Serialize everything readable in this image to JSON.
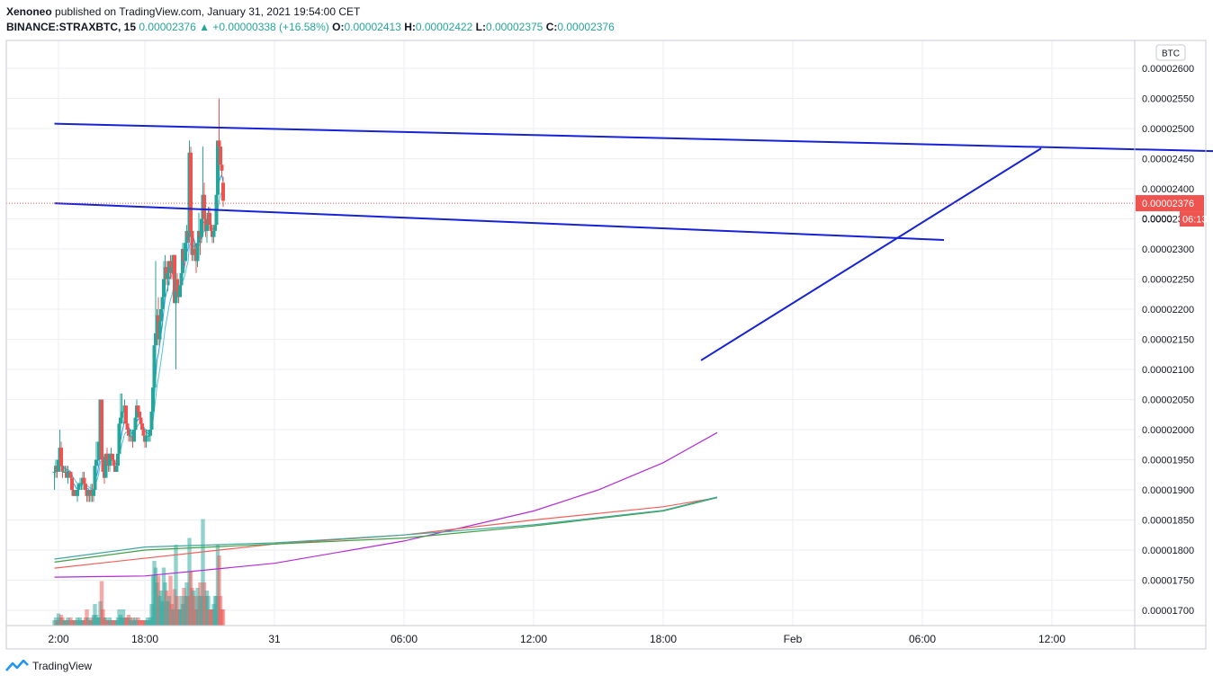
{
  "header": {
    "publisher": "Xenoneo",
    "published_text": "published on TradingView.com, January 31, 2021 19:54:00 CET",
    "symbol": "BINANCE:STRAXBTC, 15",
    "price": "0.00002376",
    "change": "▲ +0.00000338 (+16.58%)",
    "o_label": "O:",
    "o_value": "0.00002413",
    "h_label": "H:",
    "h_value": "0.00002422",
    "l_label": "L:",
    "l_value": "0.00002375",
    "c_label": "C:",
    "c_value": "0.00002376"
  },
  "price_axis": {
    "currency": "BTC",
    "last_price_label": "0.00002376",
    "countdown_label": "06:13",
    "countdown_prefix": "0.0000"
  },
  "footer": {
    "brand": "TradingView"
  },
  "colors": {
    "up": "#26a69a",
    "down": "#ef5350",
    "trendline": "#1522d6",
    "ema_fast": "#2196f3",
    "ema_slow": "#4dc4dc",
    "ma_purple": "#b32bd6",
    "ma_red": "#f0605a",
    "ma_green": "#43a047",
    "ma_teal": "#3fa89e",
    "grid": "#eceef2"
  },
  "chart_data": {
    "type": "candlestick",
    "ylim": [
      1.68e-05,
      2.63e-05
    ],
    "y_ticks": [
      "0.00002600",
      "0.00002550",
      "0.00002500",
      "0.00002450",
      "0.00002400",
      "0.00002350",
      "0.00002300",
      "0.00002250",
      "0.00002200",
      "0.00002150",
      "0.00002100",
      "0.00002050",
      "0.00002000",
      "0.00001950",
      "0.00001900",
      "0.00001850",
      "0.00001800",
      "0.00001750",
      "0.00001700"
    ],
    "x_ticks": [
      "2:00",
      "18:00",
      "31",
      "06:00",
      "12:00",
      "18:00",
      "Feb",
      "06:00",
      "12:00"
    ],
    "x_tick_times": [
      -16,
      0,
      24,
      48,
      72,
      96,
      120,
      144,
      168
    ],
    "start_time": -16.75,
    "bar_hours": 0.25,
    "candles": [
      [
        1.93e-05,
        1.94e-05,
        1.9e-05,
        1.93e-05,
        0.004
      ],
      [
        1.93e-05,
        1.95e-05,
        1.92e-05,
        1.94e-05,
        0.006
      ],
      [
        1.94e-05,
        1.95e-05,
        1.92e-05,
        1.93e-05,
        0.004
      ],
      [
        1.93e-05,
        1.95e-05,
        1.93e-05,
        1.95e-05,
        0.009
      ],
      [
        1.95e-05,
        2e-05,
        1.94e-05,
        1.97e-05,
        0.006
      ],
      [
        1.97e-05,
        1.98e-05,
        1.93e-05,
        1.94e-05,
        0.008
      ],
      [
        1.94e-05,
        1.96e-05,
        1.92e-05,
        1.93e-05,
        0.006
      ],
      [
        1.93e-05,
        1.94e-05,
        1.93e-05,
        1.93e-05,
        0.004
      ],
      [
        1.93e-05,
        1.94e-05,
        1.92e-05,
        1.93e-05,
        0.004
      ],
      [
        1.93e-05,
        1.94e-05,
        1.92e-05,
        1.92e-05,
        0.004
      ],
      [
        1.92e-05,
        1.94e-05,
        1.91e-05,
        1.93e-05,
        0.006
      ],
      [
        1.93e-05,
        1.93e-05,
        1.92e-05,
        1.93e-05,
        0.004
      ],
      [
        1.93e-05,
        1.93e-05,
        1.91e-05,
        1.92e-05,
        0.006
      ],
      [
        1.92e-05,
        1.92e-05,
        1.89e-05,
        1.9e-05,
        0.004
      ],
      [
        1.9e-05,
        1.91e-05,
        1.89e-05,
        1.89e-05,
        0.004
      ],
      [
        1.89e-05,
        1.9e-05,
        1.89e-05,
        1.9e-05,
        0.004
      ],
      [
        1.9e-05,
        1.9e-05,
        1.89e-05,
        1.89e-05,
        0.004
      ],
      [
        1.89e-05,
        1.9e-05,
        1.88e-05,
        1.9e-05,
        0.006
      ],
      [
        1.9e-05,
        1.91e-05,
        1.89e-05,
        1.91e-05,
        0.004
      ],
      [
        1.91e-05,
        1.92e-05,
        1.9e-05,
        1.91e-05,
        0.006
      ],
      [
        1.91e-05,
        1.92e-05,
        1.9e-05,
        1.91e-05,
        0.004
      ],
      [
        1.91e-05,
        1.93e-05,
        1.9e-05,
        1.92e-05,
        0.004
      ],
      [
        1.92e-05,
        1.93e-05,
        1.9e-05,
        1.91e-05,
        0.004
      ],
      [
        1.91e-05,
        1.92e-05,
        1.89e-05,
        1.9e-05,
        0.006
      ],
      [
        1.9e-05,
        1.91e-05,
        1.88e-05,
        1.89e-05,
        0.012
      ],
      [
        1.89e-05,
        1.9e-05,
        1.88e-05,
        1.9e-05,
        0.006
      ],
      [
        1.9e-05,
        1.9e-05,
        1.88e-05,
        1.89e-05,
        0.004
      ],
      [
        1.89e-05,
        1.91e-05,
        1.88e-05,
        1.9e-05,
        0.004
      ],
      [
        1.9e-05,
        1.91e-05,
        1.88e-05,
        1.89e-05,
        0.006
      ],
      [
        1.89e-05,
        1.9e-05,
        1.88e-05,
        1.9e-05,
        0.008
      ],
      [
        1.9e-05,
        1.95e-05,
        1.89e-05,
        1.94e-05,
        0.016
      ],
      [
        1.94e-05,
        1.98e-05,
        1.93e-05,
        1.95e-05,
        0.008
      ],
      [
        1.95e-05,
        1.95e-05,
        1.94e-05,
        1.95e-05,
        0.006
      ],
      [
        1.95e-05,
        1.99e-05,
        1.95e-05,
        1.98e-05,
        0.006
      ],
      [
        1.98e-05,
        2.05e-05,
        1.97e-05,
        2.05e-05,
        0.018
      ],
      [
        2.05e-05,
        2.05e-05,
        1.94e-05,
        1.95e-05,
        0.033
      ],
      [
        1.95e-05,
        1.96e-05,
        1.92e-05,
        1.93e-05,
        0.012
      ],
      [
        1.93e-05,
        1.94e-05,
        1.91e-05,
        1.92e-05,
        0.006
      ],
      [
        1.92e-05,
        1.96e-05,
        1.92e-05,
        1.96e-05,
        0.006
      ],
      [
        1.96e-05,
        1.97e-05,
        1.95e-05,
        1.95e-05,
        0.004
      ],
      [
        1.95e-05,
        1.96e-05,
        1.93e-05,
        1.94e-05,
        0.004
      ],
      [
        1.94e-05,
        1.96e-05,
        1.93e-05,
        1.96e-05,
        0.006
      ],
      [
        1.96e-05,
        1.97e-05,
        1.95e-05,
        1.96e-05,
        0.004
      ],
      [
        1.96e-05,
        1.96e-05,
        1.94e-05,
        1.95e-05,
        0.004
      ],
      [
        1.95e-05,
        1.95e-05,
        1.93e-05,
        1.94e-05,
        0.004
      ],
      [
        1.94e-05,
        1.95e-05,
        1.93e-05,
        1.93e-05,
        0.004
      ],
      [
        1.93e-05,
        1.95e-05,
        1.93e-05,
        1.94e-05,
        0.004
      ],
      [
        1.94e-05,
        1.96e-05,
        1.94e-05,
        1.96e-05,
        0.006
      ],
      [
        1.96e-05,
        2.02e-05,
        1.95e-05,
        2.01e-05,
        0.012
      ],
      [
        2.01e-05,
        2.06e-05,
        2e-05,
        2.02e-05,
        0.008
      ],
      [
        2.02e-05,
        2.06e-05,
        2.01e-05,
        2.03e-05,
        0.006
      ],
      [
        2.03e-05,
        2.04e-05,
        2.01e-05,
        2.03e-05,
        0.012
      ],
      [
        2.03e-05,
        2.05e-05,
        2.02e-05,
        2.04e-05,
        0.006
      ],
      [
        2.04e-05,
        2.04e-05,
        2e-05,
        2.01e-05,
        0.006
      ],
      [
        2.01e-05,
        2.02e-05,
        1.99e-05,
        2e-05,
        0.006
      ],
      [
        2e-05,
        2.01e-05,
        1.98e-05,
        1.99e-05,
        0.008
      ],
      [
        1.99e-05,
        2e-05,
        1.98e-05,
        1.99e-05,
        0.006
      ],
      [
        1.99e-05,
        2e-05,
        1.98e-05,
        1.99e-05,
        0.004
      ],
      [
        1.99e-05,
        2e-05,
        1.97e-05,
        1.98e-05,
        0.006
      ],
      [
        1.98e-05,
        2.01e-05,
        1.98e-05,
        2e-05,
        0.004
      ],
      [
        2e-05,
        2.02e-05,
        1.99e-05,
        2.02e-05,
        0.006
      ],
      [
        2.02e-05,
        2.05e-05,
        2.01e-05,
        2.04e-05,
        0.004
      ],
      [
        2.04e-05,
        2.04e-05,
        2.02e-05,
        2.03e-05,
        0.006
      ],
      [
        2.03e-05,
        2.03e-05,
        2.01e-05,
        2.02e-05,
        0.004
      ],
      [
        2.02e-05,
        2.03e-05,
        2e-05,
        2.01e-05,
        0.004
      ],
      [
        2.01e-05,
        2.02e-05,
        1.99e-05,
        2e-05,
        0.004
      ],
      [
        2e-05,
        2.01e-05,
        1.98e-05,
        1.99e-05,
        0.004
      ],
      [
        1.99e-05,
        2e-05,
        1.97e-05,
        1.98e-05,
        0.004
      ],
      [
        1.98e-05,
        2e-05,
        1.97e-05,
        1.99e-05,
        0.004
      ],
      [
        1.99e-05,
        2e-05,
        1.98e-05,
        1.99e-05,
        0.006
      ],
      [
        1.99e-05,
        2e-05,
        1.98e-05,
        1.99e-05,
        0.004
      ],
      [
        1.99e-05,
        2e-05,
        1.98e-05,
        2e-05,
        0.006
      ],
      [
        2e-05,
        2.04e-05,
        1.99e-05,
        2.03e-05,
        0.016
      ],
      [
        2.03e-05,
        2.08e-05,
        2.02e-05,
        2.07e-05,
        0.037
      ],
      [
        2.07e-05,
        2.16e-05,
        2.06e-05,
        2.14e-05,
        0.048
      ],
      [
        2.14e-05,
        2.28e-05,
        2.13e-05,
        2.16e-05,
        0.043
      ],
      [
        2.16e-05,
        2.2e-05,
        2.14e-05,
        2.19e-05,
        0.032
      ],
      [
        2.19e-05,
        2.22e-05,
        2.14e-05,
        2.15e-05,
        0.037
      ],
      [
        2.15e-05,
        2.19e-05,
        2.14e-05,
        2.18e-05,
        0.022
      ],
      [
        2.18e-05,
        2.22e-05,
        2.17e-05,
        2.2e-05,
        0.026
      ],
      [
        2.2e-05,
        2.23e-05,
        2.18e-05,
        2.22e-05,
        0.018
      ],
      [
        2.22e-05,
        2.28e-05,
        2.2e-05,
        2.25e-05,
        0.043
      ],
      [
        2.25e-05,
        2.29e-05,
        2.24e-05,
        2.27e-05,
        0.032
      ],
      [
        2.27e-05,
        2.28e-05,
        2.24e-05,
        2.25e-05,
        0.026
      ],
      [
        2.25e-05,
        2.27e-05,
        2.23e-05,
        2.26e-05,
        0.018
      ],
      [
        2.26e-05,
        2.28e-05,
        2.24e-05,
        2.28e-05,
        0.022
      ],
      [
        2.28e-05,
        2.29e-05,
        2.25e-05,
        2.27e-05,
        0.037
      ],
      [
        2.27e-05,
        2.28e-05,
        2.25e-05,
        2.26e-05,
        0.016
      ],
      [
        2.26e-05,
        2.29e-05,
        2.26e-05,
        2.29e-05,
        0.012
      ],
      [
        2.29e-05,
        2.29e-05,
        2.21e-05,
        2.21e-05,
        0.027
      ],
      [
        2.21e-05,
        2.26e-05,
        2.1e-05,
        2.25e-05,
        0.06
      ],
      [
        2.25e-05,
        2.26e-05,
        2.22e-05,
        2.23e-05,
        0.022
      ],
      [
        2.23e-05,
        2.24e-05,
        2.21e-05,
        2.22e-05,
        0.012
      ],
      [
        2.22e-05,
        2.25e-05,
        2.22e-05,
        2.24e-05,
        0.012
      ],
      [
        2.24e-05,
        2.27e-05,
        2.24e-05,
        2.26e-05,
        0.022
      ],
      [
        2.26e-05,
        2.31e-05,
        2.26e-05,
        2.3e-05,
        0.016
      ],
      [
        2.3e-05,
        2.31e-05,
        2.27e-05,
        2.28e-05,
        0.028
      ],
      [
        2.28e-05,
        2.32e-05,
        2.28e-05,
        2.31e-05,
        0.022
      ],
      [
        2.31e-05,
        2.34e-05,
        2.3e-05,
        2.33e-05,
        0.032
      ],
      [
        2.33e-05,
        2.34e-05,
        2.31e-05,
        2.32e-05,
        0.022
      ],
      [
        2.32e-05,
        2.48e-05,
        2.31e-05,
        2.46e-05,
        0.065
      ],
      [
        2.46e-05,
        2.47e-05,
        2.32e-05,
        2.33e-05,
        0.04
      ],
      [
        2.33e-05,
        2.34e-05,
        2.28e-05,
        2.29e-05,
        0.028
      ],
      [
        2.29e-05,
        2.31e-05,
        2.28e-05,
        2.3e-05,
        0.026
      ],
      [
        2.3e-05,
        2.31e-05,
        2.28e-05,
        2.29e-05,
        0.022
      ],
      [
        2.29e-05,
        2.3e-05,
        2.26e-05,
        2.28e-05,
        0.012
      ],
      [
        2.28e-05,
        2.32e-05,
        2.27e-05,
        2.31e-05,
        0.028
      ],
      [
        2.31e-05,
        2.36e-05,
        2.3e-05,
        2.33e-05,
        0.022
      ],
      [
        2.33e-05,
        2.35e-05,
        2.29e-05,
        2.32e-05,
        0.032
      ],
      [
        2.32e-05,
        2.36e-05,
        2.31e-05,
        2.35e-05,
        0.022
      ],
      [
        2.35e-05,
        2.47e-05,
        2.32e-05,
        2.39e-05,
        0.079
      ],
      [
        2.39e-05,
        2.41e-05,
        2.33e-05,
        2.35e-05,
        0.032
      ],
      [
        2.35e-05,
        2.37e-05,
        2.32e-05,
        2.33e-05,
        0.022
      ],
      [
        2.33e-05,
        2.35e-05,
        2.31e-05,
        2.34e-05,
        0.026
      ],
      [
        2.34e-05,
        2.37e-05,
        2.33e-05,
        2.36e-05,
        0.022
      ],
      [
        2.36e-05,
        2.37e-05,
        2.33e-05,
        2.34e-05,
        0.012
      ],
      [
        2.34e-05,
        2.35e-05,
        2.32e-05,
        2.33e-05,
        0.012
      ],
      [
        2.33e-05,
        2.34e-05,
        2.31e-05,
        2.32e-05,
        0.012
      ],
      [
        2.32e-05,
        2.34e-05,
        2.31e-05,
        2.33e-05,
        0.016
      ],
      [
        2.33e-05,
        2.36e-05,
        2.32e-05,
        2.34e-05,
        0.022
      ],
      [
        2.34e-05,
        2.4e-05,
        2.34e-05,
        2.39e-05,
        0.022
      ],
      [
        2.39e-05,
        2.48e-05,
        2.39e-05,
        2.48e-05,
        0.06
      ],
      [
        2.48e-05,
        2.55e-05,
        2.44e-05,
        2.47e-05,
        0.052
      ],
      [
        2.47e-05,
        2.48e-05,
        2.43e-05,
        2.44e-05,
        0.022
      ],
      [
        2.44e-05,
        2.44e-05,
        2.42e-05,
        2.43e-05,
        0.012
      ],
      [
        2.41e-05,
        2.42e-05,
        2.37e-05,
        2.38e-05,
        0.012
      ]
    ]
  }
}
